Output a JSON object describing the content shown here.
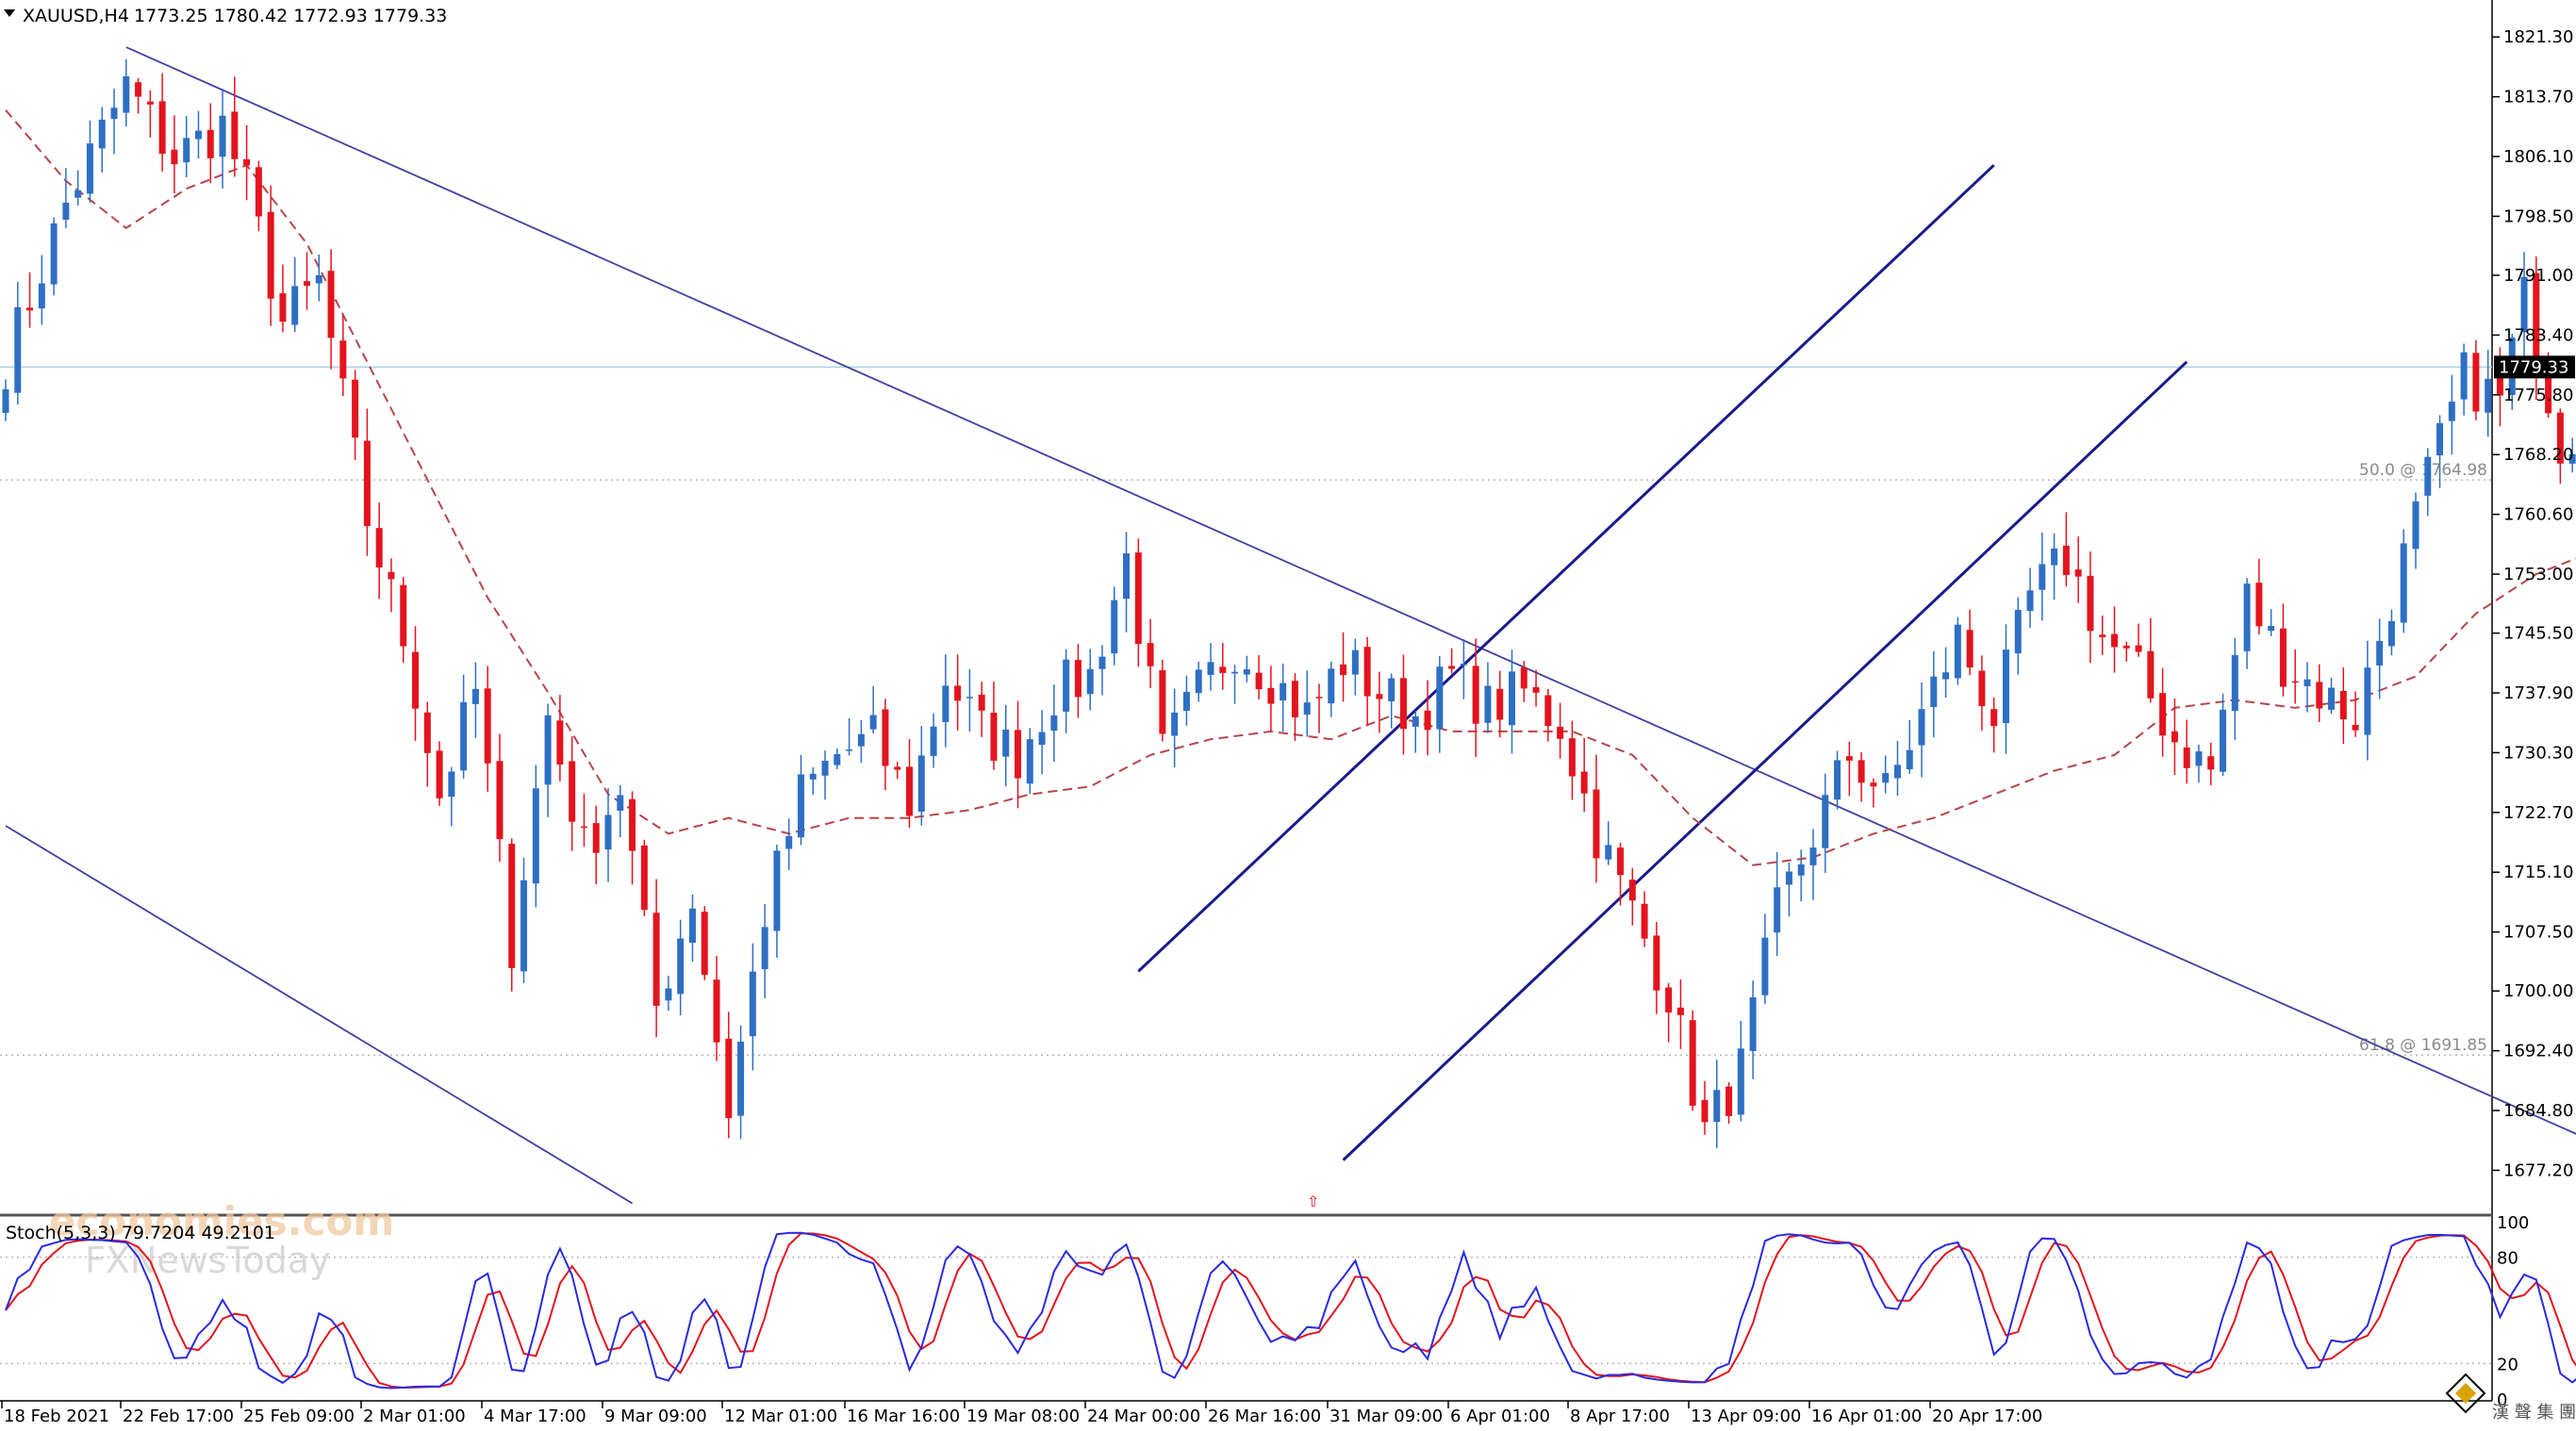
{
  "header": {
    "symbol": "XAUUSD,H4",
    "ohlc": "1773.25 1780.42 1772.93 1779.33"
  },
  "stoch_header": "Stoch(5,3,3) 79.7204 49.2101",
  "watermark": {
    "line1": "economies.com",
    "line2": "FXNewsToday"
  },
  "colors": {
    "bull": "#2e6fc4",
    "bear": "#e3141e",
    "ma": "#b8454a",
    "trend": "#4040a0",
    "channel": "#1a1a8c",
    "grid": "#b7b7b7",
    "k_line": "#2a2ae0",
    "d_line": "#e3141e"
  },
  "chart_data": [
    {
      "type": "candlestick",
      "title": "XAUUSD,H4",
      "timeframe": "H4",
      "last_price": 1779.33,
      "current_price_label": "1779.33",
      "ylim": [
        1671.5,
        1826.0
      ],
      "y_ticks": [
        "1821.30",
        "1813.70",
        "1806.10",
        "1798.50",
        "1791.00",
        "1783.40",
        "1775.80",
        "1768.20",
        "1760.60",
        "1753.00",
        "1745.50",
        "1737.90",
        "1730.30",
        "1722.70",
        "1715.10",
        "1707.50",
        "1700.00",
        "1692.40",
        "1684.80",
        "1677.20"
      ],
      "x_ticks": [
        "18 Feb 2021",
        "22 Feb 17:00",
        "25 Feb 09:00",
        "2 Mar 01:00",
        "4 Mar 17:00",
        "9 Mar 09:00",
        "12 Mar 01:00",
        "16 Mar 16:00",
        "19 Mar 08:00",
        "24 Mar 00:00",
        "26 Mar 16:00",
        "31 Mar 09:00",
        "6 Apr 01:00",
        "8 Apr 17:00",
        "13 Apr 09:00",
        "16 Apr 01:00",
        "20 Apr 17:00"
      ],
      "fib_levels": [
        {
          "label": "50.0 @ 1764.98",
          "price": 1764.98
        },
        {
          "label": "61.8 @ 1691.85",
          "price": 1691.85
        }
      ],
      "close_path": [
        [
          0,
          1780
        ],
        [
          5,
          1800
        ],
        [
          10,
          1815
        ],
        [
          14,
          1806
        ],
        [
          18,
          1810
        ],
        [
          20,
          1802
        ],
        [
          23,
          1785
        ],
        [
          26,
          1790
        ],
        [
          30,
          1760
        ],
        [
          33,
          1745
        ],
        [
          36,
          1725
        ],
        [
          39,
          1738
        ],
        [
          42,
          1706
        ],
        [
          45,
          1735
        ],
        [
          48,
          1718
        ],
        [
          51,
          1726
        ],
        [
          54,
          1698
        ],
        [
          57,
          1712
        ],
        [
          60,
          1685
        ],
        [
          63,
          1710
        ],
        [
          66,
          1725
        ],
        [
          69,
          1730
        ],
        [
          72,
          1732
        ],
        [
          75,
          1724
        ],
        [
          78,
          1740
        ],
        [
          81,
          1733
        ],
        [
          84,
          1730
        ],
        [
          87,
          1738
        ],
        [
          90,
          1740
        ],
        [
          93,
          1755
        ],
        [
          96,
          1730
        ],
        [
          99,
          1738
        ],
        [
          102,
          1744
        ],
        [
          105,
          1740
        ],
        [
          108,
          1735
        ],
        [
          111,
          1742
        ],
        [
          114,
          1738
        ],
        [
          117,
          1735
        ],
        [
          120,
          1740
        ],
        [
          123,
          1736
        ],
        [
          126,
          1738
        ],
        [
          129,
          1734
        ],
        [
          132,
          1720
        ],
        [
          135,
          1710
        ],
        [
          138,
          1700
        ],
        [
          141,
          1682
        ],
        [
          144,
          1690
        ],
        [
          147,
          1710
        ],
        [
          150,
          1720
        ],
        [
          153,
          1730
        ],
        [
          156,
          1725
        ],
        [
          159,
          1735
        ],
        [
          162,
          1745
        ],
        [
          165,
          1735
        ],
        [
          168,
          1750
        ],
        [
          171,
          1755
        ],
        [
          174,
          1745
        ],
        [
          177,
          1740
        ],
        [
          180,
          1732
        ],
        [
          183,
          1728
        ],
        [
          186,
          1750
        ],
        [
          189,
          1742
        ],
        [
          192,
          1738
        ],
        [
          195,
          1735
        ],
        [
          198,
          1750
        ],
        [
          201,
          1765
        ],
        [
          204,
          1778
        ],
        [
          207,
          1775
        ],
        [
          209,
          1788
        ],
        [
          212,
          1770
        ],
        [
          215,
          1773
        ],
        [
          217,
          1779.33
        ]
      ],
      "ma_path": [
        [
          0,
          1812
        ],
        [
          5,
          1803
        ],
        [
          10,
          1797
        ],
        [
          15,
          1802
        ],
        [
          20,
          1805
        ],
        [
          25,
          1795
        ],
        [
          30,
          1780
        ],
        [
          35,
          1765
        ],
        [
          40,
          1750
        ],
        [
          45,
          1738
        ],
        [
          50,
          1725
        ],
        [
          55,
          1720
        ],
        [
          60,
          1722
        ],
        [
          65,
          1720
        ],
        [
          70,
          1722
        ],
        [
          75,
          1722
        ],
        [
          80,
          1723
        ],
        [
          85,
          1725
        ],
        [
          90,
          1726
        ],
        [
          95,
          1730
        ],
        [
          100,
          1732
        ],
        [
          105,
          1733
        ],
        [
          110,
          1732
        ],
        [
          115,
          1735
        ],
        [
          120,
          1733
        ],
        [
          125,
          1733
        ],
        [
          130,
          1733
        ],
        [
          135,
          1730
        ],
        [
          140,
          1722
        ],
        [
          145,
          1716
        ],
        [
          150,
          1717
        ],
        [
          155,
          1720
        ],
        [
          160,
          1722
        ],
        [
          165,
          1725
        ],
        [
          170,
          1728
        ],
        [
          175,
          1730
        ],
        [
          180,
          1736
        ],
        [
          185,
          1737
        ],
        [
          190,
          1736
        ],
        [
          195,
          1737
        ],
        [
          200,
          1740
        ],
        [
          205,
          1748
        ],
        [
          210,
          1753
        ],
        [
          215,
          1756
        ]
      ],
      "trendlines": [
        {
          "name": "descending upper",
          "from": [
            10,
            1820
          ],
          "to": [
            216,
            1680
          ]
        },
        {
          "name": "descending lower",
          "from": [
            0,
            1721
          ],
          "to": [
            52,
            1673
          ]
        },
        {
          "name": "channel upper",
          "from": [
            94,
            1702.5
          ],
          "to": [
            165,
            1805
          ]
        },
        {
          "name": "channel lower",
          "from": [
            111,
            1678.5
          ],
          "to": [
            181,
            1780
          ]
        }
      ]
    },
    {
      "type": "line",
      "title": "Stoch(5,3,3)",
      "ylim": [
        0,
        100
      ],
      "y_ticks": [
        "100",
        "80",
        "20",
        "0"
      ],
      "levels": [
        80,
        20
      ],
      "k_value": 79.7204,
      "d_value": 49.2101
    }
  ]
}
